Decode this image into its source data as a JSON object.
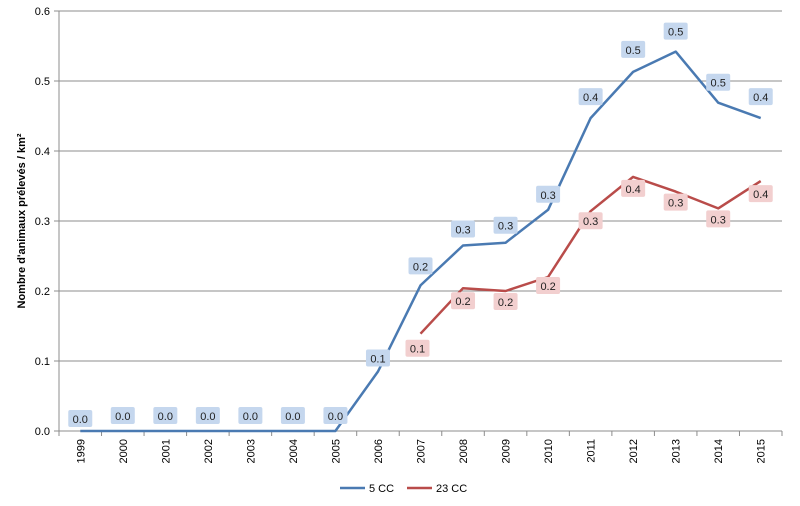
{
  "chart_data": {
    "type": "line",
    "title": "",
    "xlabel": "",
    "ylabel": "Nombre d'animaux prélevés / km²",
    "ylim": [
      0,
      0.6
    ],
    "yticks": [
      "0.0",
      "0.1",
      "0.2",
      "0.3",
      "0.4",
      "0.5",
      "0.6"
    ],
    "categories": [
      "1999",
      "2000",
      "2001",
      "2002",
      "2003",
      "2004",
      "2005",
      "2006",
      "2007",
      "2008",
      "2009",
      "2010",
      "2011",
      "2012",
      "2013",
      "2014",
      "2015"
    ],
    "grid": true,
    "legend": "bottom",
    "series": [
      {
        "name": "5 CC",
        "color": "#4a7ab2",
        "label_bg": "#c5d7ee",
        "values": [
          0,
          0,
          0,
          0,
          0,
          0,
          0,
          0.085,
          0.208,
          0.265,
          0.269,
          0.316,
          0.447,
          0.513,
          0.542,
          0.469,
          0.447
        ],
        "labels": [
          "0.0",
          "0.0",
          "0.0",
          "0.0",
          "0.0",
          "0.0",
          "0.0",
          "0.1",
          "0.2",
          "0.3",
          "0.3",
          "0.3",
          "0.4",
          "0.5",
          "0.5",
          "0.5",
          "0.4"
        ]
      },
      {
        "name": "23 CC",
        "color": "#b94c4a",
        "label_bg": "#f2cfcf",
        "values": [
          null,
          null,
          null,
          null,
          null,
          null,
          null,
          null,
          0.139,
          0.204,
          0.2,
          0.22,
          0.314,
          0.363,
          0.342,
          0.318,
          0.357
        ],
        "labels": [
          null,
          null,
          null,
          null,
          null,
          null,
          null,
          null,
          "0.1",
          "0.2",
          "0.2",
          "0.2",
          "0.3",
          "0.4",
          "0.3",
          "0.3",
          "0.4"
        ]
      }
    ]
  }
}
